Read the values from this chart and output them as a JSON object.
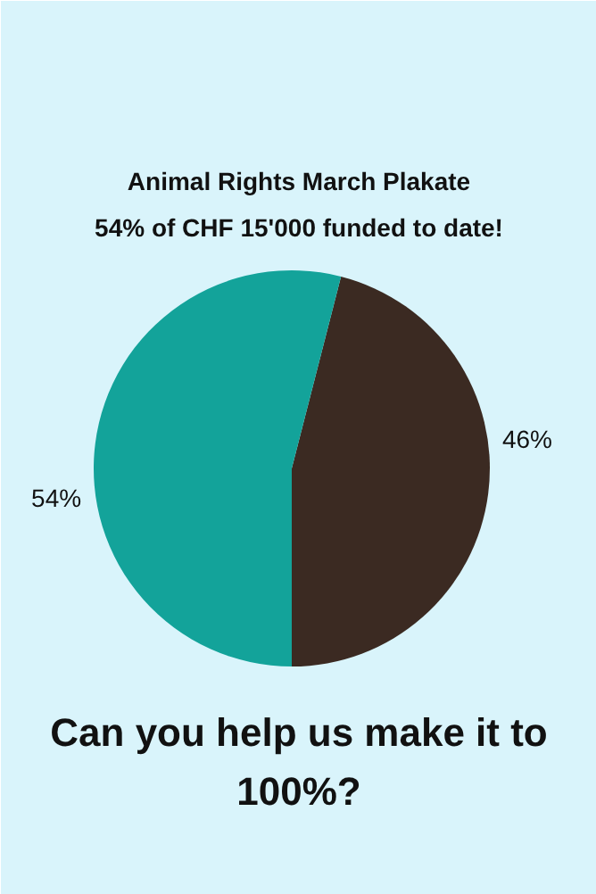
{
  "chart_data": {
    "type": "pie",
    "title": "Animal Rights March Plakate",
    "subtitle": "54% of CHF 15'000 funded to date!",
    "categories": [
      null,
      null
    ],
    "values": [
      46,
      54
    ],
    "colors": [
      "#3b2a22",
      "#13a39a"
    ],
    "value_labels": [
      "46%",
      "54%"
    ],
    "annotations": [
      "Can you help us make it to 100%?"
    ]
  }
}
